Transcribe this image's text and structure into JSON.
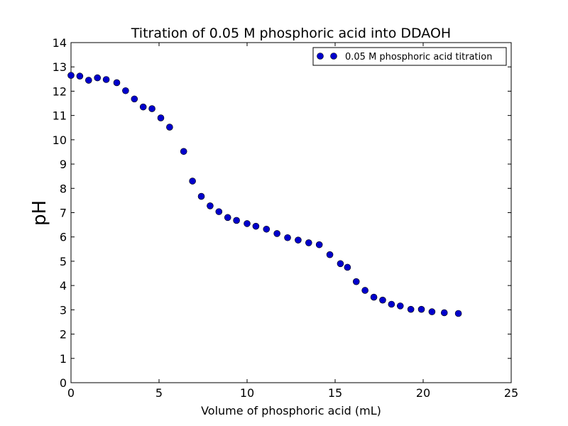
{
  "chart_data": {
    "type": "scatter",
    "title": "Titration of 0.05 M phosphoric acid into DDAOH",
    "xlabel": "Volume of phosphoric acid (mL)",
    "ylabel": "pH",
    "xlim": [
      0,
      25
    ],
    "ylim": [
      0,
      14
    ],
    "xticks": [
      0,
      5,
      10,
      15,
      20,
      25
    ],
    "yticks": [
      0,
      1,
      2,
      3,
      4,
      5,
      6,
      7,
      8,
      9,
      10,
      11,
      12,
      13,
      14
    ],
    "grid": false,
    "legend_position": "top-right",
    "series": [
      {
        "name": "0.05 M phosphoric acid titration",
        "color": "#0000cc",
        "x": [
          0.0,
          0.5,
          1.0,
          1.5,
          2.0,
          2.6,
          3.1,
          3.6,
          4.1,
          4.6,
          5.1,
          5.6,
          6.4,
          6.9,
          7.4,
          7.9,
          8.4,
          8.9,
          9.4,
          10.0,
          10.5,
          11.1,
          11.7,
          12.3,
          12.9,
          13.5,
          14.1,
          14.7,
          15.3,
          15.7,
          16.2,
          16.7,
          17.2,
          17.7,
          18.2,
          18.7,
          19.3,
          19.9,
          20.5,
          21.2,
          22.0
        ],
        "y": [
          12.65,
          12.62,
          12.45,
          12.55,
          12.48,
          12.35,
          12.02,
          11.68,
          11.35,
          11.28,
          10.9,
          10.52,
          9.52,
          8.3,
          7.67,
          7.28,
          7.04,
          6.8,
          6.68,
          6.55,
          6.44,
          6.32,
          6.14,
          5.97,
          5.87,
          5.76,
          5.68,
          5.27,
          4.9,
          4.75,
          4.16,
          3.8,
          3.52,
          3.4,
          3.23,
          3.16,
          3.02,
          3.02,
          2.92,
          2.88,
          2.85
        ]
      }
    ]
  }
}
